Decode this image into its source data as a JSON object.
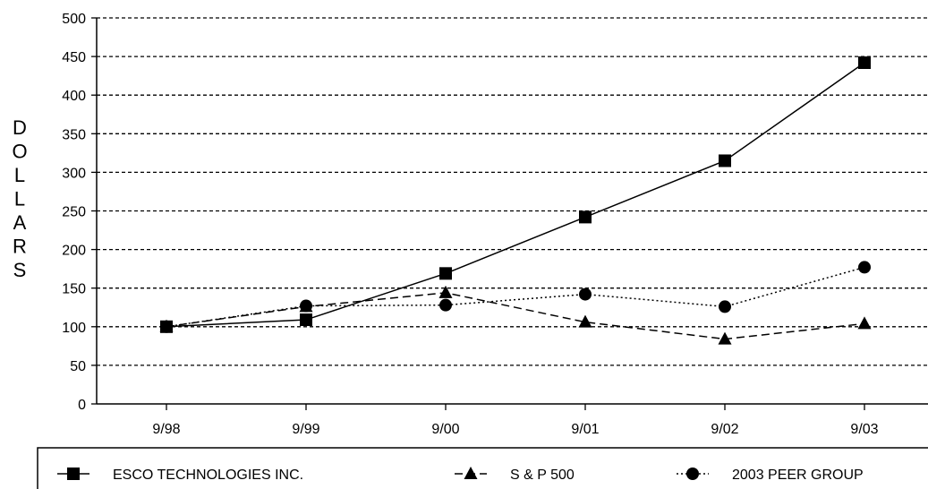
{
  "chart_data": {
    "type": "line",
    "ylabel": "DOLLARS",
    "categories": [
      "9/98",
      "9/99",
      "9/00",
      "9/01",
      "9/02",
      "9/03"
    ],
    "ylim": [
      0,
      500
    ],
    "yticks": [
      0,
      50,
      100,
      150,
      200,
      250,
      300,
      350,
      400,
      450,
      500
    ],
    "grid": "horizontal-dashed",
    "legend_position": "bottom",
    "series": [
      {
        "name": "ESCO TECHNOLOGIES INC.",
        "values": [
          100,
          109,
          169,
          242,
          315,
          442
        ],
        "marker": "square",
        "linestyle": "solid",
        "color": "#000000"
      },
      {
        "name": "S & P 500",
        "values": [
          100,
          126,
          144,
          106,
          84,
          104
        ],
        "marker": "triangle",
        "linestyle": "dashed",
        "color": "#000000"
      },
      {
        "name": "2003 PEER GROUP",
        "values": [
          100,
          127,
          128,
          142,
          126,
          177
        ],
        "marker": "circle",
        "linestyle": "dotted",
        "color": "#000000"
      }
    ]
  }
}
